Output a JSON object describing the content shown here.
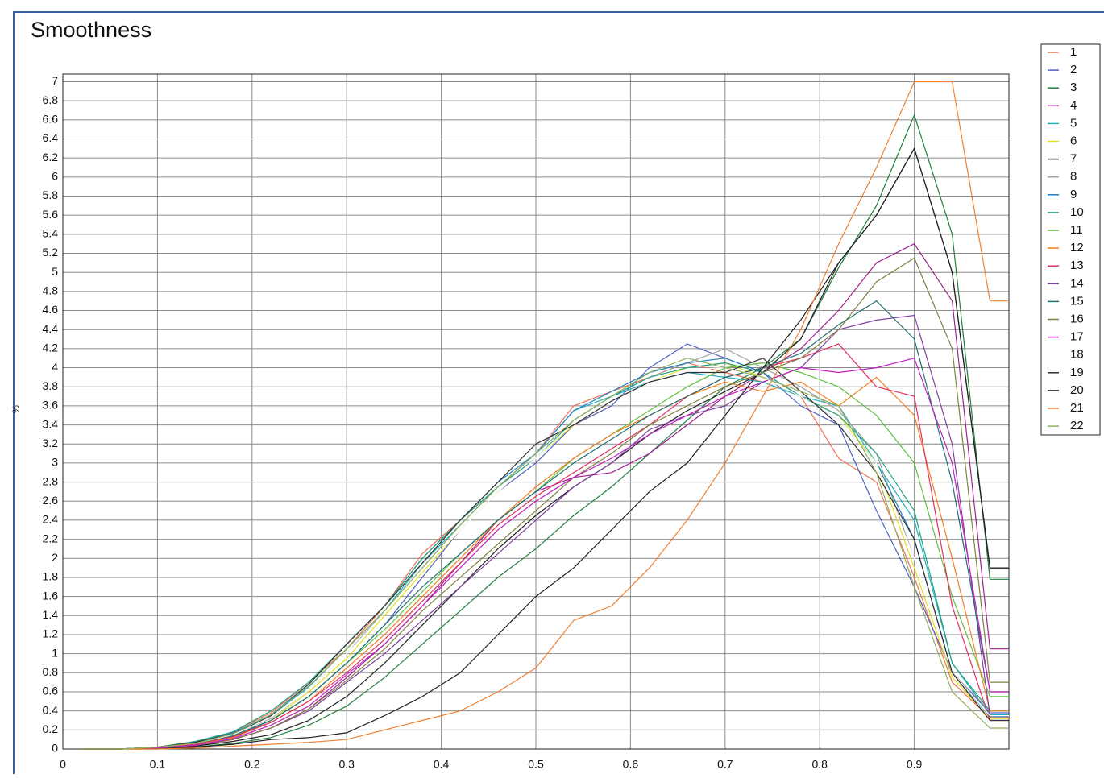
{
  "chart_data": {
    "type": "line",
    "title": "Smoothness",
    "y_label": "%",
    "x": [
      0.02,
      0.06,
      0.1,
      0.14,
      0.18,
      0.22,
      0.26,
      0.3,
      0.34,
      0.38,
      0.42,
      0.46,
      0.5,
      0.54,
      0.58,
      0.62,
      0.66,
      0.7,
      0.74,
      0.78,
      0.82,
      0.86,
      0.9,
      0.94,
      0.98,
      1.0
    ],
    "xlim": [
      0,
      1
    ],
    "xticks": [
      0,
      0.1,
      0.2,
      0.3,
      0.4,
      0.5,
      0.6,
      0.7,
      0.8,
      0.9
    ],
    "ylim": [
      0,
      7.08
    ],
    "yticks": [
      0,
      0.2,
      0.4,
      0.6,
      0.8,
      1,
      1.2,
      1.4,
      1.6,
      1.8,
      2,
      2.2,
      2.4,
      2.6,
      2.8,
      3,
      3.2,
      3.4,
      3.6,
      3.8,
      4,
      4.2,
      4.4,
      4.6,
      4.8,
      5,
      5.2,
      5.4,
      5.6,
      5.8,
      6,
      6.2,
      6.4,
      6.6,
      6.8,
      7
    ],
    "grid": true,
    "legend": "right",
    "series": [
      {
        "name": "1",
        "color": "#f07050",
        "values": [
          0,
          0,
          0.02,
          0.06,
          0.18,
          0.38,
          0.7,
          1.05,
          1.5,
          2.05,
          2.4,
          2.75,
          3.1,
          3.6,
          3.75,
          3.9,
          4.05,
          3.95,
          3.85,
          3.7,
          3.05,
          2.8,
          1.8,
          0.7,
          0.33,
          0.33
        ]
      },
      {
        "name": "2",
        "color": "#5060c0",
        "values": [
          0,
          0,
          0.02,
          0.05,
          0.12,
          0.3,
          0.55,
          0.9,
          1.3,
          1.8,
          2.3,
          2.7,
          3.0,
          3.4,
          3.6,
          4.0,
          4.25,
          4.1,
          3.95,
          3.6,
          3.4,
          2.5,
          1.7,
          0.8,
          0.38,
          0.38
        ]
      },
      {
        "name": "3",
        "color": "#208040",
        "values": [
          0,
          0,
          0.01,
          0.02,
          0.06,
          0.12,
          0.25,
          0.45,
          0.75,
          1.1,
          1.45,
          1.8,
          2.1,
          2.45,
          2.75,
          3.1,
          3.45,
          3.8,
          4.0,
          4.3,
          5.05,
          5.7,
          6.65,
          5.4,
          1.78,
          1.78
        ]
      },
      {
        "name": "4",
        "color": "#a02090",
        "values": [
          0,
          0,
          0.01,
          0.03,
          0.1,
          0.22,
          0.42,
          0.75,
          1.1,
          1.5,
          1.95,
          2.4,
          2.7,
          2.85,
          2.9,
          3.1,
          3.4,
          3.7,
          3.95,
          4.2,
          4.6,
          5.1,
          5.3,
          4.7,
          1.05,
          1.05
        ]
      },
      {
        "name": "5",
        "color": "#20b0c0",
        "values": [
          0,
          0,
          0.02,
          0.07,
          0.15,
          0.35,
          0.65,
          1.05,
          1.45,
          1.95,
          2.35,
          2.75,
          3.1,
          3.55,
          3.7,
          3.85,
          3.95,
          3.9,
          3.85,
          3.7,
          3.6,
          3.0,
          2.4,
          0.9,
          0.36,
          0.36
        ]
      },
      {
        "name": "6",
        "color": "#e0e020",
        "values": [
          0,
          0,
          0.02,
          0.05,
          0.14,
          0.3,
          0.6,
          0.95,
          1.4,
          1.85,
          2.3,
          2.7,
          3.05,
          3.4,
          3.65,
          3.85,
          4.0,
          4.05,
          3.9,
          3.7,
          3.5,
          3.0,
          1.9,
          0.75,
          0.32,
          0.32
        ]
      },
      {
        "name": "7",
        "color": "#202020",
        "values": [
          0,
          0,
          0.01,
          0.03,
          0.08,
          0.15,
          0.3,
          0.55,
          0.9,
          1.3,
          1.7,
          2.1,
          2.45,
          2.75,
          3.0,
          3.3,
          3.55,
          3.75,
          3.95,
          4.3,
          5.1,
          5.6,
          6.3,
          5.0,
          1.9,
          1.9
        ]
      },
      {
        "name": "8",
        "color": "#a0a0a0",
        "values": [
          0,
          0,
          0.02,
          0.06,
          0.15,
          0.32,
          0.62,
          1.0,
          1.45,
          1.9,
          2.35,
          2.75,
          3.1,
          3.45,
          3.7,
          3.9,
          4.05,
          4.2,
          4.0,
          3.8,
          3.55,
          3.1,
          2.0,
          0.8,
          0.4,
          0.4
        ]
      },
      {
        "name": "9",
        "color": "#2080c0",
        "values": [
          0,
          0,
          0.02,
          0.07,
          0.17,
          0.36,
          0.68,
          1.1,
          1.5,
          2.0,
          2.4,
          2.8,
          3.1,
          3.55,
          3.75,
          3.95,
          4.05,
          4.1,
          3.95,
          3.7,
          3.45,
          3.0,
          2.2,
          0.8,
          0.34,
          0.34
        ]
      },
      {
        "name": "10",
        "color": "#20a080",
        "values": [
          0,
          0,
          0.02,
          0.08,
          0.18,
          0.4,
          0.7,
          1.1,
          1.5,
          2.0,
          2.4,
          2.75,
          3.05,
          3.45,
          3.7,
          3.9,
          4.0,
          4.05,
          3.95,
          3.7,
          3.5,
          3.1,
          2.5,
          0.9,
          0.4,
          0.4
        ]
      },
      {
        "name": "11",
        "color": "#60c040",
        "values": [
          0,
          0,
          0.02,
          0.06,
          0.14,
          0.3,
          0.55,
          0.9,
          1.25,
          1.65,
          2.05,
          2.4,
          2.7,
          3.05,
          3.3,
          3.55,
          3.8,
          4.0,
          4.05,
          3.95,
          3.8,
          3.5,
          3.0,
          1.6,
          0.55,
          0.55
        ]
      },
      {
        "name": "12",
        "color": "#f08020",
        "values": [
          0,
          0,
          0.02,
          0.05,
          0.12,
          0.28,
          0.5,
          0.85,
          1.2,
          1.6,
          2.0,
          2.4,
          2.75,
          3.05,
          3.3,
          3.5,
          3.7,
          3.85,
          3.75,
          3.85,
          3.6,
          3.9,
          3.5,
          2.0,
          0.4,
          0.4
        ]
      },
      {
        "name": "13",
        "color": "#e03060",
        "values": [
          0,
          0,
          0.02,
          0.05,
          0.13,
          0.28,
          0.5,
          0.8,
          1.15,
          1.55,
          1.95,
          2.35,
          2.65,
          2.9,
          3.15,
          3.4,
          3.7,
          3.9,
          4.0,
          4.1,
          4.25,
          3.8,
          3.7,
          1.5,
          0.3,
          0.3
        ]
      },
      {
        "name": "14",
        "color": "#8040a0",
        "values": [
          0,
          0,
          0.01,
          0.04,
          0.1,
          0.22,
          0.4,
          0.7,
          1.0,
          1.35,
          1.7,
          2.05,
          2.4,
          2.75,
          3.0,
          3.35,
          3.5,
          3.6,
          3.85,
          4.0,
          4.4,
          4.5,
          4.55,
          3.2,
          0.35,
          0.35
        ]
      },
      {
        "name": "15",
        "color": "#207070",
        "values": [
          0,
          0,
          0.02,
          0.06,
          0.14,
          0.3,
          0.55,
          0.9,
          1.3,
          1.7,
          2.05,
          2.4,
          2.7,
          3.0,
          3.25,
          3.5,
          3.7,
          3.9,
          4.0,
          4.15,
          4.45,
          4.7,
          4.3,
          2.8,
          0.6,
          0.6
        ]
      },
      {
        "name": "16",
        "color": "#808040",
        "values": [
          0,
          0,
          0.01,
          0.04,
          0.1,
          0.22,
          0.42,
          0.72,
          1.05,
          1.45,
          1.8,
          2.15,
          2.5,
          2.85,
          3.1,
          3.4,
          3.6,
          3.8,
          3.95,
          4.1,
          4.4,
          4.9,
          5.15,
          4.2,
          0.7,
          0.7
        ]
      },
      {
        "name": "17",
        "color": "#c020c0",
        "values": [
          0,
          0,
          0.01,
          0.04,
          0.11,
          0.25,
          0.45,
          0.78,
          1.1,
          1.5,
          1.9,
          2.3,
          2.6,
          2.85,
          3.05,
          3.3,
          3.5,
          3.7,
          3.85,
          4.0,
          3.95,
          4.0,
          4.1,
          3.0,
          0.6,
          0.6
        ]
      },
      {
        "name": "18",
        "color": "#ffffff",
        "values": [
          0,
          0,
          0.02,
          0.06,
          0.15,
          0.33,
          0.62,
          1.0,
          1.42,
          1.88,
          2.3,
          2.7,
          3.05,
          3.42,
          3.65,
          3.85,
          3.98,
          4.0,
          3.9,
          3.7,
          3.45,
          3.0,
          2.0,
          0.8,
          0.35,
          0.35
        ]
      },
      {
        "name": "19",
        "color": "#303030",
        "values": [
          0,
          0,
          0.02,
          0.07,
          0.16,
          0.35,
          0.68,
          1.1,
          1.5,
          1.95,
          2.4,
          2.8,
          3.2,
          3.4,
          3.65,
          3.85,
          3.95,
          3.95,
          4.1,
          3.75,
          3.4,
          2.9,
          2.2,
          0.8,
          0.3,
          0.3
        ]
      },
      {
        "name": "20",
        "color": "#202020",
        "values": [
          0,
          0,
          0,
          0.02,
          0.05,
          0.1,
          0.12,
          0.17,
          0.35,
          0.55,
          0.8,
          1.2,
          1.6,
          1.9,
          2.3,
          2.7,
          3.0,
          3.5,
          4.0,
          4.5,
          5.1,
          5.6,
          6.3,
          5.0,
          1.9,
          1.9
        ]
      },
      {
        "name": "21",
        "color": "#f08030",
        "values": [
          0,
          0,
          0,
          0.01,
          0.03,
          0.05,
          0.07,
          0.1,
          0.2,
          0.3,
          0.4,
          0.6,
          0.85,
          1.35,
          1.5,
          1.9,
          2.4,
          3.0,
          3.7,
          4.4,
          5.3,
          6.1,
          7.0,
          7.0,
          4.7,
          4.7
        ]
      },
      {
        "name": "22",
        "color": "#90b060",
        "values": [
          0,
          0,
          0.02,
          0.06,
          0.16,
          0.36,
          0.66,
          1.05,
          1.45,
          1.9,
          2.35,
          2.75,
          3.1,
          3.45,
          3.7,
          3.95,
          4.1,
          4.0,
          3.9,
          3.75,
          3.6,
          2.9,
          1.7,
          0.6,
          0.22,
          0.22
        ]
      }
    ]
  }
}
